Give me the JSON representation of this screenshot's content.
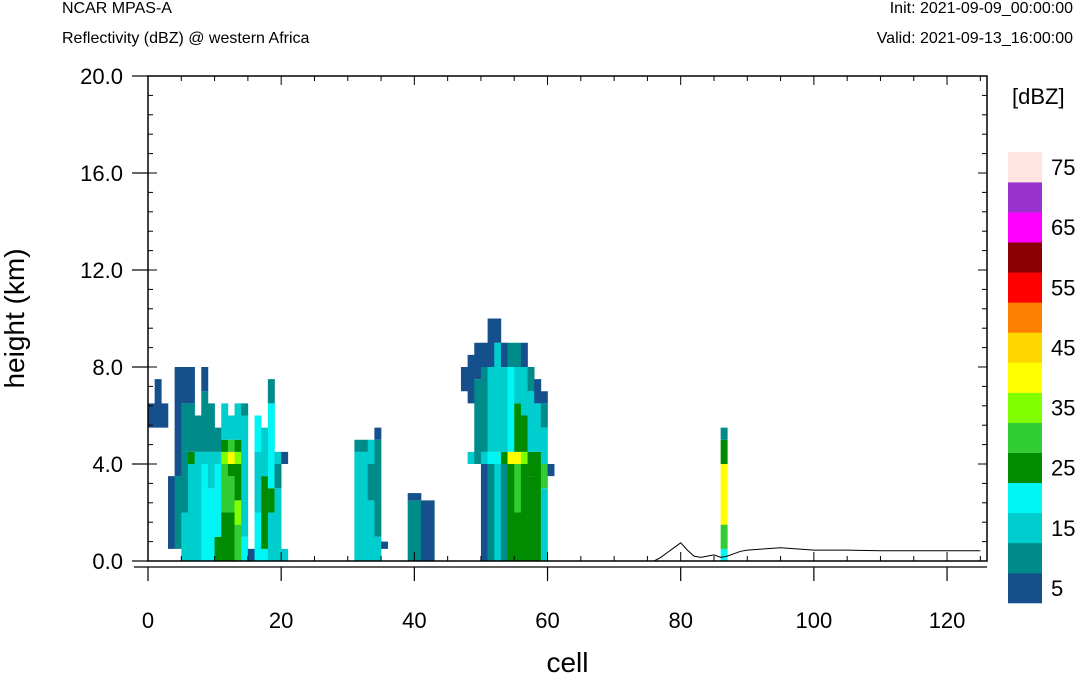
{
  "header": {
    "title": "NCAR MPAS-A",
    "subtitle": "Reflectivity (dBZ) @ western Africa",
    "init": "Init: 2021-09-09_00:00:00",
    "valid": "Valid: 2021-09-13_16:00:00"
  },
  "chart_data": {
    "type": "heatmap",
    "xlabel": "cell",
    "ylabel": "height (km)",
    "xlim": [
      0,
      126
    ],
    "ylim": [
      0,
      20
    ],
    "xticks": [
      0,
      20,
      40,
      60,
      80,
      100,
      120
    ],
    "yticks": [
      0.0,
      4.0,
      8.0,
      12.0,
      16.0,
      20.0
    ],
    "ytick_labels": [
      "0.0",
      "4.0",
      "8.0",
      "12.0",
      "16.0",
      "20.0"
    ],
    "grid": false,
    "colorbar": {
      "unit_label": "[dBZ]",
      "levels": [
        5,
        10,
        15,
        20,
        25,
        30,
        35,
        40,
        45,
        50,
        55,
        60,
        65,
        70,
        75
      ],
      "labels": [
        "5",
        "15",
        "25",
        "35",
        "45",
        "55",
        "65",
        "75"
      ],
      "colors": [
        "#15508c",
        "#008b8b",
        "#00cdcd",
        "#00f5f5",
        "#008b00",
        "#32cd32",
        "#7fff00",
        "#ffff00",
        "#ffd700",
        "#ff7f00",
        "#ff0000",
        "#8b0000",
        "#ff00ff",
        "#9932cc",
        "#ffe4e1"
      ]
    },
    "dz_km": 0.5,
    "columns": [
      {
        "cell": 0,
        "bands": [
          [
            5.5,
            6.5,
            5
          ]
        ]
      },
      {
        "cell": 1,
        "bands": [
          [
            5.5,
            7.5,
            5
          ]
        ]
      },
      {
        "cell": 2,
        "bands": [
          [
            5.5,
            6.5,
            5
          ]
        ]
      },
      {
        "cell": 3,
        "bands": [
          [
            0.5,
            3.5,
            5
          ]
        ]
      },
      {
        "cell": 4,
        "bands": [
          [
            0.5,
            3.5,
            10
          ],
          [
            3.5,
            8.0,
            5
          ]
        ]
      },
      {
        "cell": 5,
        "bands": [
          [
            0,
            2.0,
            15
          ],
          [
            2.0,
            4.5,
            10
          ],
          [
            4.5,
            6.5,
            10
          ],
          [
            6.5,
            8.0,
            5
          ]
        ]
      },
      {
        "cell": 6,
        "bands": [
          [
            0,
            4.0,
            15
          ],
          [
            4.0,
            4.5,
            25
          ],
          [
            4.5,
            6.5,
            10
          ],
          [
            6.5,
            8.0,
            5
          ]
        ]
      },
      {
        "cell": 7,
        "bands": [
          [
            0,
            4.5,
            15
          ],
          [
            4.5,
            6.0,
            10
          ]
        ]
      },
      {
        "cell": 8,
        "bands": [
          [
            0,
            4.0,
            20
          ],
          [
            4.0,
            4.5,
            15
          ],
          [
            4.5,
            7.0,
            10
          ],
          [
            7.0,
            8.0,
            5
          ]
        ]
      },
      {
        "cell": 9,
        "bands": [
          [
            0,
            3.0,
            20
          ],
          [
            3.0,
            4.5,
            15
          ],
          [
            4.5,
            6.5,
            10
          ]
        ]
      },
      {
        "cell": 10,
        "bands": [
          [
            0,
            1.0,
            25
          ],
          [
            1.0,
            4.0,
            20
          ],
          [
            4.0,
            4.5,
            15
          ],
          [
            4.5,
            5.5,
            10
          ]
        ]
      },
      {
        "cell": 11,
        "bands": [
          [
            0,
            2.0,
            25
          ],
          [
            2.0,
            4.0,
            30
          ],
          [
            4.0,
            4.5,
            35
          ],
          [
            4.5,
            5.0,
            25
          ],
          [
            5.0,
            6.5,
            15
          ]
        ]
      },
      {
        "cell": 12,
        "bands": [
          [
            0,
            2.0,
            25
          ],
          [
            2.0,
            3.5,
            30
          ],
          [
            3.5,
            4.0,
            25
          ],
          [
            4.0,
            4.5,
            40
          ],
          [
            4.5,
            5.0,
            30
          ],
          [
            5.0,
            6.0,
            15
          ]
        ]
      },
      {
        "cell": 13,
        "bands": [
          [
            0,
            1.5,
            30
          ],
          [
            1.5,
            2.5,
            35
          ],
          [
            2.5,
            4.0,
            25
          ],
          [
            4.0,
            4.5,
            35
          ],
          [
            4.5,
            5.0,
            25
          ],
          [
            5.0,
            6.5,
            15
          ]
        ]
      },
      {
        "cell": 14,
        "bands": [
          [
            0,
            1.0,
            20
          ],
          [
            1.0,
            2.5,
            15
          ],
          [
            2.5,
            6.0,
            15
          ],
          [
            6.0,
            6.5,
            10
          ]
        ]
      },
      {
        "cell": 15,
        "bands": [
          [
            0,
            0.5,
            5
          ]
        ]
      },
      {
        "cell": 16,
        "bands": [
          [
            0,
            2.0,
            20
          ],
          [
            2.0,
            4.5,
            15
          ],
          [
            4.5,
            6.0,
            20
          ]
        ]
      },
      {
        "cell": 17,
        "bands": [
          [
            0,
            0.5,
            20
          ],
          [
            0.5,
            3.5,
            25
          ],
          [
            3.5,
            5.5,
            15
          ]
        ]
      },
      {
        "cell": 18,
        "bands": [
          [
            0,
            2.0,
            15
          ],
          [
            2.0,
            3.0,
            25
          ],
          [
            3.0,
            6.5,
            20
          ],
          [
            6.5,
            7.5,
            10
          ]
        ]
      },
      {
        "cell": 19,
        "bands": [
          [
            0,
            3.0,
            15
          ],
          [
            3.0,
            4.0,
            10
          ],
          [
            4.0,
            4.5,
            15
          ]
        ]
      },
      {
        "cell": 20,
        "bands": [
          [
            0,
            0.5,
            15
          ],
          [
            4.0,
            4.5,
            5
          ]
        ]
      },
      {
        "cell": 31,
        "bands": [
          [
            0,
            4.5,
            15
          ],
          [
            4.5,
            5.0,
            10
          ]
        ]
      },
      {
        "cell": 32,
        "bands": [
          [
            0,
            4.5,
            15
          ],
          [
            4.5,
            5.0,
            10
          ]
        ]
      },
      {
        "cell": 33,
        "bands": [
          [
            0,
            2.5,
            15
          ],
          [
            2.5,
            4.0,
            10
          ],
          [
            4.0,
            5.0,
            15
          ]
        ]
      },
      {
        "cell": 34,
        "bands": [
          [
            0,
            1.0,
            15
          ],
          [
            1.0,
            5.0,
            10
          ],
          [
            5.0,
            5.5,
            5
          ]
        ]
      },
      {
        "cell": 35,
        "bands": [
          [
            0.5,
            0.8,
            5
          ]
        ]
      },
      {
        "cell": 39,
        "bands": [
          [
            0,
            2.5,
            10
          ],
          [
            2.5,
            2.8,
            5
          ]
        ]
      },
      {
        "cell": 40,
        "bands": [
          [
            0,
            2.5,
            10
          ],
          [
            2.5,
            2.8,
            5
          ]
        ]
      },
      {
        "cell": 41,
        "bands": [
          [
            0,
            2.5,
            5
          ]
        ]
      },
      {
        "cell": 42,
        "bands": [
          [
            0,
            2.5,
            5
          ]
        ]
      },
      {
        "cell": 47,
        "bands": [
          [
            7.0,
            8.0,
            5
          ]
        ]
      },
      {
        "cell": 48,
        "bands": [
          [
            4.0,
            4.5,
            15
          ],
          [
            6.5,
            8.5,
            5
          ]
        ]
      },
      {
        "cell": 49,
        "bands": [
          [
            4.0,
            7.5,
            10
          ],
          [
            7.5,
            9.0,
            5
          ]
        ]
      },
      {
        "cell": 50,
        "bands": [
          [
            0,
            4.0,
            5
          ],
          [
            4.0,
            4.5,
            15
          ],
          [
            4.5,
            8.0,
            10
          ],
          [
            8.0,
            9.0,
            5
          ]
        ]
      },
      {
        "cell": 51,
        "bands": [
          [
            0,
            4.0,
            10
          ],
          [
            4.0,
            4.5,
            20
          ],
          [
            4.5,
            8.0,
            15
          ],
          [
            8.0,
            10.0,
            5
          ]
        ]
      },
      {
        "cell": 52,
        "bands": [
          [
            0,
            4.0,
            15
          ],
          [
            4.0,
            4.5,
            20
          ],
          [
            4.5,
            9.0,
            15
          ],
          [
            9.0,
            10.0,
            5
          ]
        ]
      },
      {
        "cell": 53,
        "bands": [
          [
            0,
            4.0,
            10
          ],
          [
            4.0,
            4.5,
            25
          ],
          [
            4.5,
            8.0,
            15
          ],
          [
            8.0,
            9.0,
            5
          ]
        ]
      },
      {
        "cell": 54,
        "bands": [
          [
            0,
            4.0,
            25
          ],
          [
            4.0,
            4.5,
            40
          ],
          [
            4.5,
            8.0,
            20
          ],
          [
            8.0,
            9.0,
            10
          ]
        ]
      },
      {
        "cell": 55,
        "bands": [
          [
            0,
            2.0,
            25
          ],
          [
            2.0,
            4.0,
            30
          ],
          [
            4.0,
            4.5,
            40
          ],
          [
            4.5,
            6.5,
            25
          ],
          [
            6.5,
            8.0,
            15
          ],
          [
            8.0,
            9.0,
            10
          ]
        ]
      },
      {
        "cell": 56,
        "bands": [
          [
            0,
            4.0,
            25
          ],
          [
            4.0,
            4.5,
            35
          ],
          [
            4.5,
            6.0,
            25
          ],
          [
            6.0,
            8.0,
            15
          ],
          [
            8.0,
            9.0,
            5
          ]
        ]
      },
      {
        "cell": 57,
        "bands": [
          [
            0,
            3.5,
            25
          ],
          [
            3.5,
            4.5,
            25
          ],
          [
            4.5,
            7.0,
            15
          ],
          [
            7.0,
            8.0,
            10
          ]
        ]
      },
      {
        "cell": 58,
        "bands": [
          [
            0,
            4.0,
            25
          ],
          [
            4.0,
            4.5,
            25
          ],
          [
            4.5,
            6.5,
            15
          ],
          [
            6.5,
            7.5,
            5
          ]
        ]
      },
      {
        "cell": 59,
        "bands": [
          [
            0,
            3.0,
            15
          ],
          [
            3.0,
            4.0,
            30
          ],
          [
            4.0,
            5.5,
            15
          ],
          [
            5.5,
            6.5,
            10
          ],
          [
            6.5,
            7.0,
            5
          ]
        ]
      },
      {
        "cell": 60,
        "bands": [
          [
            3.5,
            4.0,
            5
          ]
        ]
      },
      {
        "cell": 86,
        "bands": [
          [
            0,
            0.5,
            20
          ],
          [
            0.5,
            1.5,
            30
          ],
          [
            1.5,
            4.0,
            40
          ],
          [
            4.0,
            5.0,
            25
          ],
          [
            5.0,
            5.5,
            10
          ]
        ]
      }
    ],
    "terrain": {
      "x": [
        0,
        76,
        77,
        78,
        79,
        80,
        81,
        82,
        83,
        84,
        85,
        86,
        87,
        88,
        89,
        90,
        95,
        100,
        105,
        110,
        115,
        120,
        125
      ],
      "y": [
        0,
        0,
        0.15,
        0.35,
        0.55,
        0.75,
        0.45,
        0.2,
        0.15,
        0.2,
        0.25,
        0.15,
        0.2,
        0.3,
        0.4,
        0.45,
        0.55,
        0.45,
        0.45,
        0.42,
        0.42,
        0.42,
        0.42
      ]
    }
  }
}
